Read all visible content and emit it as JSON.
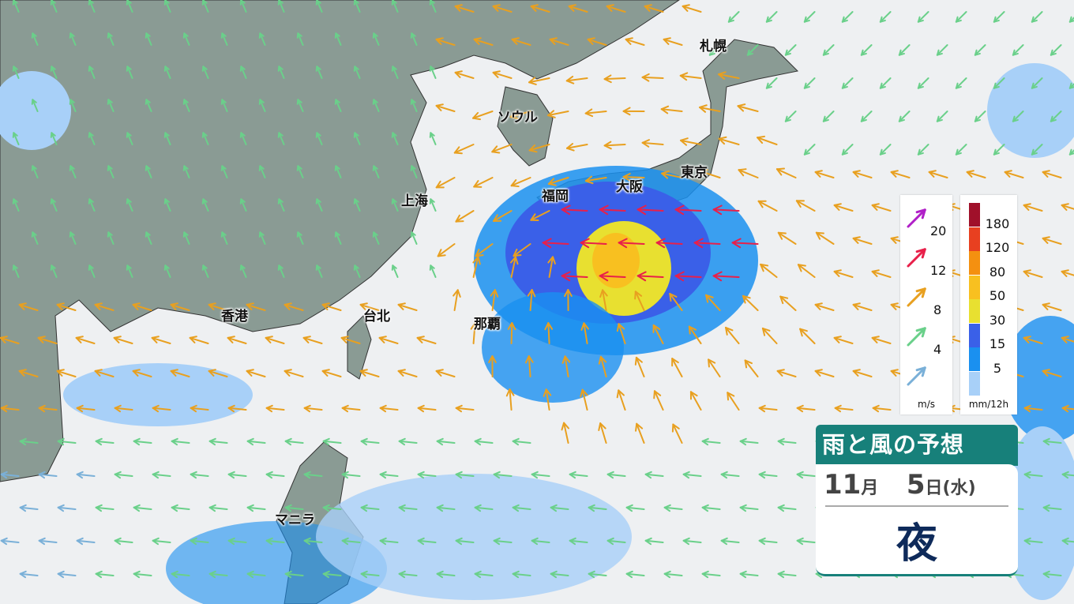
{
  "title": "雨と風の予想",
  "date": {
    "month": "11",
    "month_unit": "月",
    "day": "5",
    "day_unit": "日",
    "weekday": "(水)"
  },
  "period": "夜",
  "cities": [
    "札幌",
    "ソウル",
    "東京",
    "大阪",
    "福岡",
    "上海",
    "台北",
    "那覇",
    "香港",
    "マニラ"
  ],
  "wind_legend": {
    "unit": "m/s",
    "levels": [
      {
        "value": "20",
        "color": "#b020c8"
      },
      {
        "value": "12",
        "color": "#e8204a"
      },
      {
        "value": "8",
        "color": "#e8a020"
      },
      {
        "value": "4",
        "color": "#6ad08a"
      },
      {
        "value": "",
        "color": "#7ab0d8"
      }
    ]
  },
  "rain_legend": {
    "unit": "mm/12h",
    "colors": [
      "#a0102a",
      "#e84020",
      "#f49010",
      "#f8c020",
      "#e8e030",
      "#3a60e8",
      "#1a90f0",
      "#a8d0f8"
    ],
    "labels": [
      "180",
      "120",
      "80",
      "50",
      "30",
      "15",
      "5"
    ]
  },
  "colors": {
    "land": "#8a9b94",
    "sea": "#eef0f2",
    "header": "#17807a"
  }
}
